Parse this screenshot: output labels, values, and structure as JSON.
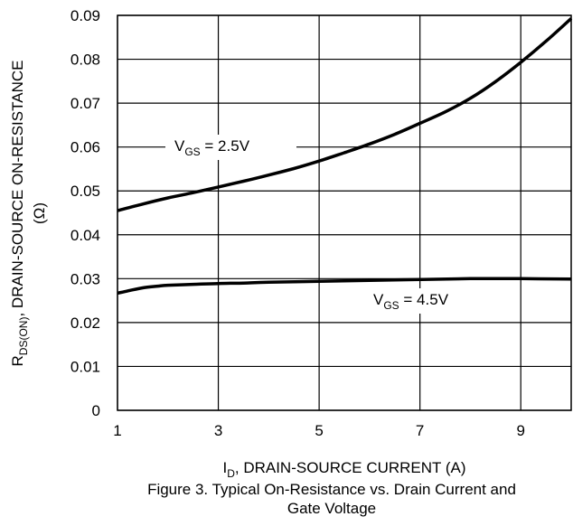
{
  "chart_data": {
    "type": "line",
    "x_axis": {
      "label_main": "I",
      "label_sub": "D",
      "label_rest": ", DRAIN-SOURCE CURRENT (A)",
      "range": [
        1,
        10
      ],
      "ticks": [
        1,
        3,
        5,
        7,
        9
      ],
      "tick_labels": [
        "1",
        "3",
        "5",
        "7",
        "9"
      ]
    },
    "y_axis": {
      "label_main": "R",
      "label_sub": "DS(ON)",
      "label_rest": ", DRAIN-SOURCE ON-RESISTANCE",
      "label_unit": "(Ω)",
      "range": [
        0,
        0.09
      ],
      "ticks": [
        0,
        0.01,
        0.02,
        0.03,
        0.04,
        0.05,
        0.06,
        0.07,
        0.08,
        0.09
      ],
      "tick_labels": [
        "0",
        "0.01",
        "0.02",
        "0.03",
        "0.04",
        "0.05",
        "0.06",
        "0.07",
        "0.08",
        "0.09"
      ]
    },
    "grid": true,
    "series": [
      {
        "name_main": "V",
        "name_sub": "GS",
        "name_rest": " = 2.5V",
        "x": [
          1.0,
          1.5,
          2.0,
          2.5,
          3.0,
          3.5,
          4.0,
          4.5,
          5.0,
          5.5,
          6.0,
          6.5,
          7.0,
          7.5,
          8.0,
          8.5,
          9.0,
          9.5,
          10.0
        ],
        "y": [
          0.0455,
          0.047,
          0.0484,
          0.0496,
          0.0509,
          0.0522,
          0.0536,
          0.0551,
          0.0568,
          0.0587,
          0.0607,
          0.0629,
          0.0654,
          0.068,
          0.0711,
          0.0749,
          0.0793,
          0.0841,
          0.0893
        ]
      },
      {
        "name_main": "V",
        "name_sub": "GS",
        "name_rest": " = 4.5V",
        "x": [
          1.0,
          1.2,
          1.5,
          1.8,
          2.0,
          2.5,
          3.0,
          3.5,
          4.0,
          5.0,
          6.0,
          7.0,
          8.0,
          9.0,
          10.0
        ],
        "y": [
          0.0267,
          0.0272,
          0.0279,
          0.0283,
          0.0285,
          0.0287,
          0.0289,
          0.029,
          0.0292,
          0.0294,
          0.0296,
          0.0298,
          0.03,
          0.03,
          0.0299
        ]
      }
    ]
  },
  "caption": {
    "line1": "Figure 3. Typical On-Resistance vs. Drain Current and",
    "line2": "Gate Voltage"
  }
}
